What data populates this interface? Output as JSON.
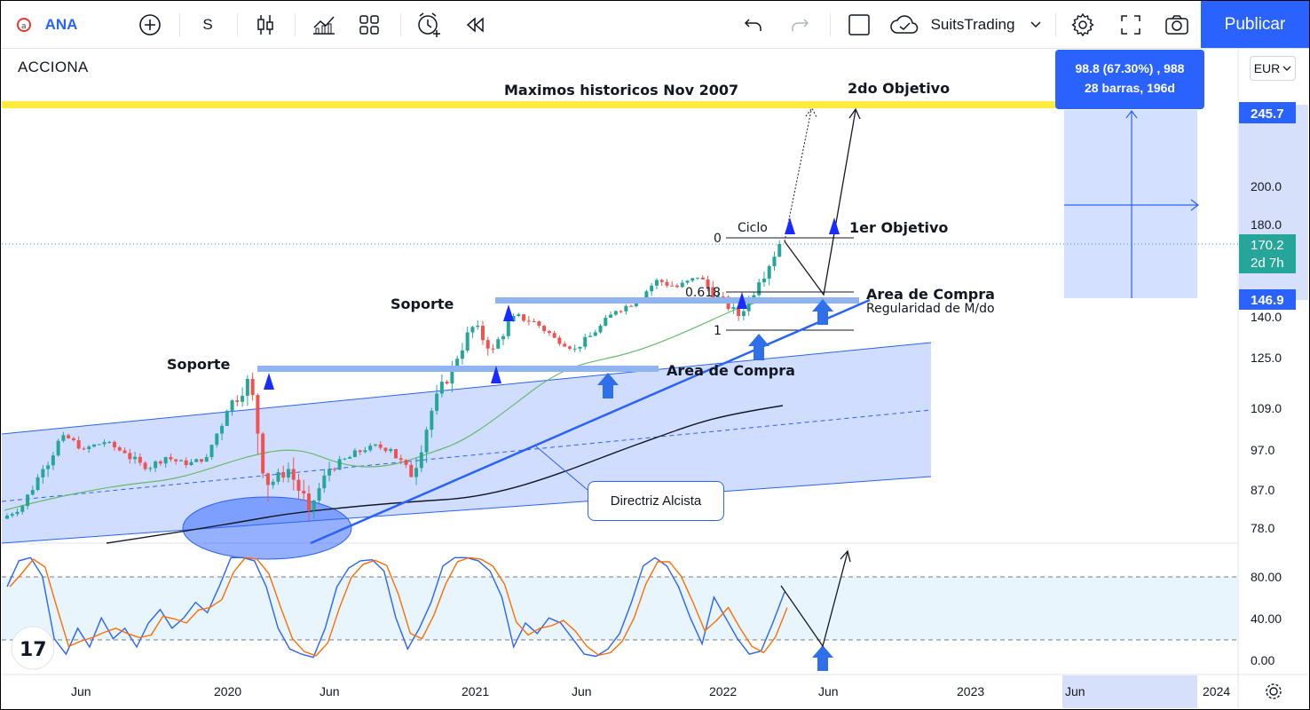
{
  "toolbar": {
    "symbol": "ANA",
    "interval": "S",
    "username": "SuitsTrading",
    "publish_label": "Publicar",
    "icons": [
      "ticker-logo-icon",
      "add-symbol-icon",
      "candlestick-icon",
      "indicators-icon",
      "layout-icon",
      "alert-icon",
      "replay-icon",
      "undo-icon",
      "redo-icon",
      "checkbox-icon",
      "cloud-icon",
      "chevron-down-icon",
      "settings-icon",
      "fullscreen-icon",
      "snapshot-icon"
    ]
  },
  "chart": {
    "symbol_name": "ACCIONA",
    "currency": "EUR",
    "currency_icon": "chevron-down-icon",
    "price_axis": [
      "200.0",
      "180.0",
      "140.0",
      "125.0",
      "109.0",
      "97.0",
      "87.0",
      "78.0"
    ],
    "price_badges": {
      "target": "245.7",
      "current": "170.2",
      "countdown": "2d 7h",
      "entry": "146.9"
    },
    "osc_axis": [
      "80.00",
      "40.00",
      "0.00"
    ],
    "time_axis": [
      "Jun",
      "2020",
      "Jun",
      "2021",
      "Jun",
      "2022",
      "Jun",
      "2023",
      "Jun",
      "2024"
    ],
    "measure": {
      "line1": "98.8 (67.30%) , 988",
      "line2": "28 barras, 196d"
    },
    "fib_labels": [
      "0",
      "0.618",
      "1"
    ],
    "annotations": {
      "maximos": "Maximos historicos Nov 2007",
      "objetivo2": "2do Objetivo",
      "objetivo1": "1er Objetivo",
      "ciclo": "Ciclo",
      "area_compra_1": "Area de Compra",
      "regularidad": "Regularidad de M/do",
      "area_compra_2": "Area de Compra",
      "soporte_1": "Soporte",
      "soporte_2": "Soporte",
      "directriz": "Directriz Alcista"
    },
    "colors": {
      "up": "#26a69a",
      "down": "#ef5350",
      "accent": "#2962ff",
      "yellow": "#ffeb3b",
      "current_price": "#26a69a"
    }
  },
  "chart_data": {
    "type": "candlestick",
    "ylim": [
      75,
      260
    ],
    "candles": [
      {
        "x": "2019-03",
        "o": 80,
        "h": 84,
        "l": 78,
        "c": 83
      },
      {
        "x": "2019-04",
        "o": 83,
        "h": 93,
        "l": 82,
        "c": 92
      },
      {
        "x": "2019-05",
        "o": 92,
        "h": 104,
        "l": 90,
        "c": 101
      },
      {
        "x": "2019-06",
        "o": 101,
        "h": 103,
        "l": 95,
        "c": 97
      },
      {
        "x": "2019-07",
        "o": 97,
        "h": 102,
        "l": 94,
        "c": 99
      },
      {
        "x": "2019-08",
        "o": 99,
        "h": 101,
        "l": 94,
        "c": 96
      },
      {
        "x": "2019-09",
        "o": 96,
        "h": 99,
        "l": 90,
        "c": 92
      },
      {
        "x": "2019-10",
        "o": 92,
        "h": 97,
        "l": 90,
        "c": 95
      },
      {
        "x": "2019-11",
        "o": 95,
        "h": 98,
        "l": 91,
        "c": 93
      },
      {
        "x": "2019-12",
        "o": 93,
        "h": 97,
        "l": 91,
        "c": 95
      },
      {
        "x": "2020-01",
        "o": 95,
        "h": 110,
        "l": 94,
        "c": 108
      },
      {
        "x": "2020-02",
        "o": 108,
        "h": 128,
        "l": 105,
        "c": 118
      },
      {
        "x": "2020-03",
        "o": 118,
        "h": 120,
        "l": 76,
        "c": 88
      },
      {
        "x": "2020-04",
        "o": 88,
        "h": 96,
        "l": 84,
        "c": 92
      },
      {
        "x": "2020-05",
        "o": 92,
        "h": 95,
        "l": 75,
        "c": 82
      },
      {
        "x": "2020-06",
        "o": 82,
        "h": 94,
        "l": 80,
        "c": 92
      },
      {
        "x": "2020-07",
        "o": 92,
        "h": 98,
        "l": 90,
        "c": 95
      },
      {
        "x": "2020-08",
        "o": 95,
        "h": 100,
        "l": 92,
        "c": 98
      },
      {
        "x": "2020-09",
        "o": 98,
        "h": 101,
        "l": 94,
        "c": 97
      },
      {
        "x": "2020-10",
        "o": 97,
        "h": 99,
        "l": 86,
        "c": 90
      },
      {
        "x": "2020-11",
        "o": 90,
        "h": 112,
        "l": 88,
        "c": 108
      },
      {
        "x": "2020-12",
        "o": 108,
        "h": 125,
        "l": 106,
        "c": 122
      },
      {
        "x": "2021-01",
        "o": 122,
        "h": 140,
        "l": 120,
        "c": 136
      },
      {
        "x": "2021-02",
        "o": 136,
        "h": 146,
        "l": 125,
        "c": 128
      },
      {
        "x": "2021-03",
        "o": 128,
        "h": 142,
        "l": 126,
        "c": 140
      },
      {
        "x": "2021-04",
        "o": 140,
        "h": 146,
        "l": 134,
        "c": 138
      },
      {
        "x": "2021-05",
        "o": 138,
        "h": 142,
        "l": 130,
        "c": 132
      },
      {
        "x": "2021-06",
        "o": 132,
        "h": 134,
        "l": 124,
        "c": 128
      },
      {
        "x": "2021-07",
        "o": 128,
        "h": 136,
        "l": 126,
        "c": 134
      },
      {
        "x": "2021-08",
        "o": 134,
        "h": 144,
        "l": 132,
        "c": 142
      },
      {
        "x": "2021-09",
        "o": 142,
        "h": 148,
        "l": 138,
        "c": 146
      },
      {
        "x": "2021-10",
        "o": 146,
        "h": 158,
        "l": 144,
        "c": 155
      },
      {
        "x": "2021-11",
        "o": 155,
        "h": 162,
        "l": 148,
        "c": 152
      },
      {
        "x": "2021-12",
        "o": 152,
        "h": 160,
        "l": 148,
        "c": 156
      },
      {
        "x": "2022-01",
        "o": 156,
        "h": 166,
        "l": 144,
        "c": 148
      },
      {
        "x": "2022-02",
        "o": 148,
        "h": 152,
        "l": 136,
        "c": 140
      },
      {
        "x": "2022-03",
        "o": 140,
        "h": 156,
        "l": 137,
        "c": 154
      },
      {
        "x": "2022-04",
        "o": 154,
        "h": 172,
        "l": 152,
        "c": 170.2
      }
    ],
    "indicator_stochastic": {
      "range": [
        0,
        100
      ],
      "levels": [
        80,
        20
      ]
    }
  }
}
